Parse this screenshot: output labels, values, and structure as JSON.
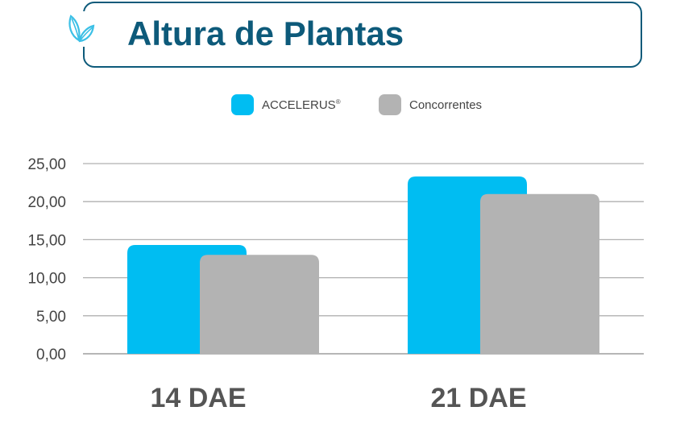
{
  "header": {
    "title": "Altura de Plantas",
    "icon": "leaf-icon"
  },
  "legend": [
    {
      "label": "ACCELERUS",
      "mark": "®",
      "color": "#00bdf2"
    },
    {
      "label": "Concorrentes",
      "mark": "",
      "color": "#b3b3b3"
    }
  ],
  "chart_data": {
    "type": "bar",
    "categories": [
      "14 DAE",
      "21 DAE"
    ],
    "series": [
      {
        "name": "ACCELERUS®",
        "values": [
          14.3,
          23.3
        ],
        "color": "#00bdf2"
      },
      {
        "name": "Concorrentes",
        "values": [
          13.0,
          21.0
        ],
        "color": "#b3b3b3"
      }
    ],
    "ylim": [
      0,
      25
    ],
    "yticks": [
      "0,00",
      "5,00",
      "10,00",
      "15,00",
      "20,00",
      "25,00"
    ],
    "ytick_values": [
      0,
      5,
      10,
      15,
      20,
      25
    ],
    "grid": true,
    "legend_position": "top-center",
    "title": "",
    "xlabel": "",
    "ylabel": ""
  }
}
